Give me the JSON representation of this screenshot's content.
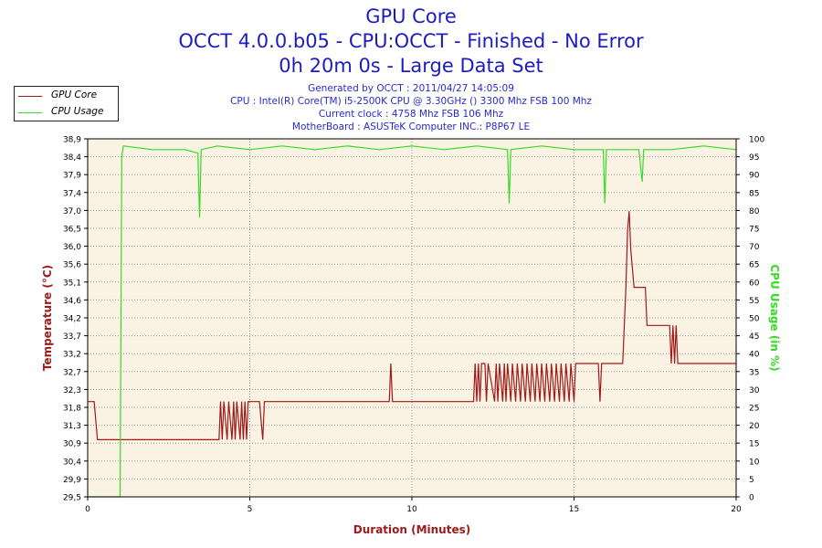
{
  "header": {
    "title_line1": "GPU Core",
    "title_line2": "OCCT 4.0.0.b05 - CPU:OCCT - Finished - No Error",
    "title_line3": "0h 20m 0s - Large Data Set",
    "generated": "Generated by OCCT : 2011/04/27 14:05:09",
    "cpu": "CPU : Intel(R) Core(TM) i5-2500K CPU @ 3.30GHz () 3300 Mhz FSB 100 Mhz",
    "clock": "Current clock : 4758 Mhz FSB 106 Mhz",
    "motherboard": "MotherBoard : ASUSTeK Computer INC.: P8P67 LE"
  },
  "legend": {
    "items": [
      {
        "label": "GPU Core",
        "color": "#a01a1a"
      },
      {
        "label": "CPU Usage",
        "color": "#33dd22"
      }
    ]
  },
  "colors": {
    "plot_bg": "#faf2e2",
    "grid": "#9a9a9a",
    "temperature": "#a01a1a",
    "cpu_usage": "#33dd22",
    "title": "#1c1cc0"
  },
  "chart_data": {
    "type": "line",
    "title": "GPU Core",
    "xlabel": "Duration (Minutes)",
    "ylabel_left": "Temperature (°C)",
    "ylabel_right": "CPU Usage (in %)",
    "xlim": [
      0,
      20
    ],
    "ylim_left": [
      29.5,
      38.9
    ],
    "ylim_right": [
      0,
      100
    ],
    "x_ticks": [
      "0",
      "5",
      "10",
      "15",
      "20"
    ],
    "y_ticks_left": [
      "38,9",
      "38,4",
      "37,9",
      "37,4",
      "37,0",
      "36,5",
      "36,0",
      "35,6",
      "35,1",
      "34,6",
      "34,2",
      "33,7",
      "33,2",
      "32,7",
      "32,3",
      "31,8",
      "31,3",
      "30,9",
      "30,4",
      "29,9",
      "29,5"
    ],
    "y_ticks_right": [
      "100",
      "95",
      "90",
      "85",
      "80",
      "75",
      "70",
      "65",
      "60",
      "55",
      "50",
      "45",
      "40",
      "35",
      "30",
      "25",
      "20",
      "15",
      "10",
      "5",
      "0"
    ],
    "grid": true,
    "legend_position": "top-left",
    "series": [
      {
        "name": "GPU Core",
        "axis": "left",
        "points": [
          [
            0.0,
            32.0
          ],
          [
            0.2,
            32.0
          ],
          [
            0.3,
            31.0
          ],
          [
            4.05,
            31.0
          ],
          [
            4.1,
            32.0
          ],
          [
            4.15,
            31.0
          ],
          [
            4.2,
            32.0
          ],
          [
            4.3,
            31.0
          ],
          [
            4.35,
            32.0
          ],
          [
            4.45,
            31.0
          ],
          [
            4.5,
            32.0
          ],
          [
            4.55,
            31.0
          ],
          [
            4.6,
            32.0
          ],
          [
            4.7,
            31.0
          ],
          [
            4.75,
            32.0
          ],
          [
            4.8,
            31.0
          ],
          [
            4.85,
            32.0
          ],
          [
            4.9,
            31.0
          ],
          [
            4.95,
            32.0
          ],
          [
            5.3,
            32.0
          ],
          [
            5.4,
            31.0
          ],
          [
            5.45,
            32.0
          ],
          [
            9.3,
            32.0
          ],
          [
            9.35,
            33.0
          ],
          [
            9.4,
            32.0
          ],
          [
            11.9,
            32.0
          ],
          [
            11.95,
            33.0
          ],
          [
            12.0,
            32.0
          ],
          [
            12.05,
            33.0
          ],
          [
            12.1,
            32.0
          ],
          [
            12.15,
            33.0
          ],
          [
            12.25,
            33.0
          ],
          [
            12.3,
            32.0
          ],
          [
            12.35,
            33.0
          ],
          [
            12.55,
            32.0
          ],
          [
            12.6,
            33.0
          ],
          [
            12.65,
            32.0
          ],
          [
            12.7,
            33.0
          ],
          [
            12.8,
            32.0
          ],
          [
            12.85,
            33.0
          ],
          [
            12.9,
            32.0
          ],
          [
            12.95,
            33.0
          ],
          [
            13.05,
            32.0
          ],
          [
            13.1,
            33.0
          ],
          [
            13.2,
            32.0
          ],
          [
            13.25,
            33.0
          ],
          [
            13.35,
            32.0
          ],
          [
            13.4,
            33.0
          ],
          [
            13.5,
            32.0
          ],
          [
            13.55,
            33.0
          ],
          [
            13.65,
            32.0
          ],
          [
            13.7,
            33.0
          ],
          [
            13.8,
            32.0
          ],
          [
            13.85,
            33.0
          ],
          [
            13.95,
            32.0
          ],
          [
            14.0,
            33.0
          ],
          [
            14.1,
            32.0
          ],
          [
            14.15,
            33.0
          ],
          [
            14.25,
            32.0
          ],
          [
            14.3,
            33.0
          ],
          [
            14.4,
            32.0
          ],
          [
            14.45,
            33.0
          ],
          [
            14.55,
            32.0
          ],
          [
            14.6,
            33.0
          ],
          [
            14.7,
            32.0
          ],
          [
            14.75,
            33.0
          ],
          [
            14.85,
            32.0
          ],
          [
            14.9,
            33.0
          ],
          [
            15.0,
            32.0
          ],
          [
            15.05,
            33.0
          ],
          [
            15.75,
            33.0
          ],
          [
            15.8,
            32.0
          ],
          [
            15.85,
            33.0
          ],
          [
            16.45,
            33.0
          ],
          [
            16.5,
            33.0
          ],
          [
            16.6,
            35.0
          ],
          [
            16.65,
            36.5
          ],
          [
            16.7,
            37.0
          ],
          [
            16.75,
            36.0
          ],
          [
            16.8,
            35.5
          ],
          [
            16.85,
            35.0
          ],
          [
            17.2,
            35.0
          ],
          [
            17.25,
            34.0
          ],
          [
            17.95,
            34.0
          ],
          [
            18.0,
            33.0
          ],
          [
            18.05,
            34.0
          ],
          [
            18.1,
            33.0
          ],
          [
            18.15,
            34.0
          ],
          [
            18.2,
            33.0
          ],
          [
            20.0,
            33.0
          ]
        ]
      },
      {
        "name": "CPU Usage",
        "axis": "right",
        "points": [
          [
            0.0,
            0
          ],
          [
            1.0,
            0
          ],
          [
            1.05,
            95
          ],
          [
            1.1,
            98
          ],
          [
            2.0,
            97
          ],
          [
            3.0,
            97
          ],
          [
            3.4,
            96
          ],
          [
            3.45,
            78
          ],
          [
            3.5,
            97
          ],
          [
            4.0,
            98
          ],
          [
            5.0,
            97
          ],
          [
            6.0,
            98
          ],
          [
            7.0,
            97
          ],
          [
            8.0,
            98
          ],
          [
            9.0,
            97
          ],
          [
            10.0,
            98
          ],
          [
            11.0,
            97
          ],
          [
            12.0,
            98
          ],
          [
            12.95,
            97
          ],
          [
            13.0,
            82
          ],
          [
            13.05,
            97
          ],
          [
            14.0,
            98
          ],
          [
            15.0,
            97
          ],
          [
            15.9,
            97
          ],
          [
            15.95,
            82
          ],
          [
            16.0,
            97
          ],
          [
            17.0,
            97
          ],
          [
            17.1,
            88
          ],
          [
            17.15,
            97
          ],
          [
            18.0,
            97
          ],
          [
            19.0,
            98
          ],
          [
            20.0,
            97
          ]
        ]
      }
    ]
  }
}
